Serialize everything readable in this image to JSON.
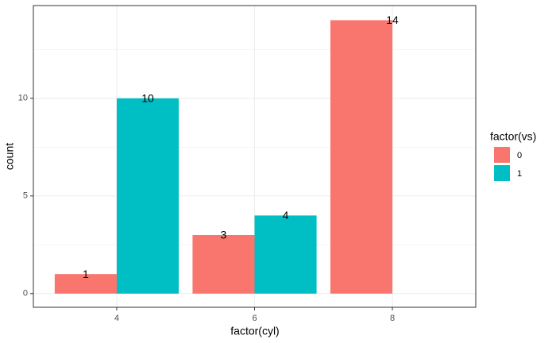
{
  "chart_data": {
    "type": "bar",
    "x_label": "factor(cyl)",
    "y_label": "count",
    "categories": [
      "4",
      "6",
      "8"
    ],
    "legend_title": "factor(vs)",
    "series": [
      {
        "name": "0",
        "color": "#F8766D",
        "values": [
          1,
          3,
          14
        ]
      },
      {
        "name": "1",
        "color": "#00BFC4",
        "values": [
          10,
          4,
          null
        ]
      }
    ],
    "ylim": [
      -0.7,
      14.75
    ],
    "yticks": [
      0,
      5,
      10
    ],
    "grid": true,
    "legend": "right"
  }
}
